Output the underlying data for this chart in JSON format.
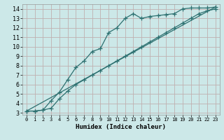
{
  "xlabel": "Humidex (Indice chaleur)",
  "ylabel": "",
  "bg_color": "#cce8e8",
  "grid_color": "#c0b0b0",
  "line_color": "#2d7070",
  "xlim": [
    -0.5,
    23.5
  ],
  "ylim": [
    2.8,
    14.5
  ],
  "xticks": [
    0,
    1,
    2,
    3,
    4,
    5,
    6,
    7,
    8,
    9,
    10,
    11,
    12,
    13,
    14,
    15,
    16,
    17,
    18,
    19,
    20,
    21,
    22,
    23
  ],
  "yticks": [
    3,
    4,
    5,
    6,
    7,
    8,
    9,
    10,
    11,
    12,
    13,
    14
  ],
  "line1_x": [
    0,
    1,
    2,
    3,
    4,
    5,
    6,
    7,
    8,
    9,
    10,
    11,
    12,
    13,
    14,
    15,
    16,
    17,
    18,
    19,
    20,
    21,
    22,
    23
  ],
  "line1_y": [
    3.2,
    3.2,
    3.3,
    4.3,
    5.2,
    6.5,
    7.8,
    8.5,
    9.5,
    9.8,
    11.5,
    12.0,
    13.0,
    13.5,
    13.0,
    13.2,
    13.3,
    13.4,
    13.5,
    14.0,
    14.1,
    14.1,
    14.1,
    14.2
  ],
  "line2_x": [
    0,
    1,
    2,
    3,
    4,
    5,
    6,
    7,
    8,
    9,
    10,
    11,
    12,
    13,
    14,
    15,
    16,
    17,
    18,
    19,
    20,
    21,
    22,
    23
  ],
  "line2_y": [
    3.2,
    3.2,
    3.3,
    3.5,
    4.5,
    5.3,
    6.0,
    6.5,
    7.0,
    7.5,
    8.0,
    8.5,
    9.0,
    9.5,
    10.0,
    10.5,
    11.0,
    11.5,
    12.0,
    12.5,
    13.0,
    13.5,
    13.8,
    14.0
  ],
  "line3_x": [
    0,
    23
  ],
  "line3_y": [
    3.2,
    14.2
  ],
  "marker": "+",
  "markersize": 4,
  "linewidth": 0.9
}
